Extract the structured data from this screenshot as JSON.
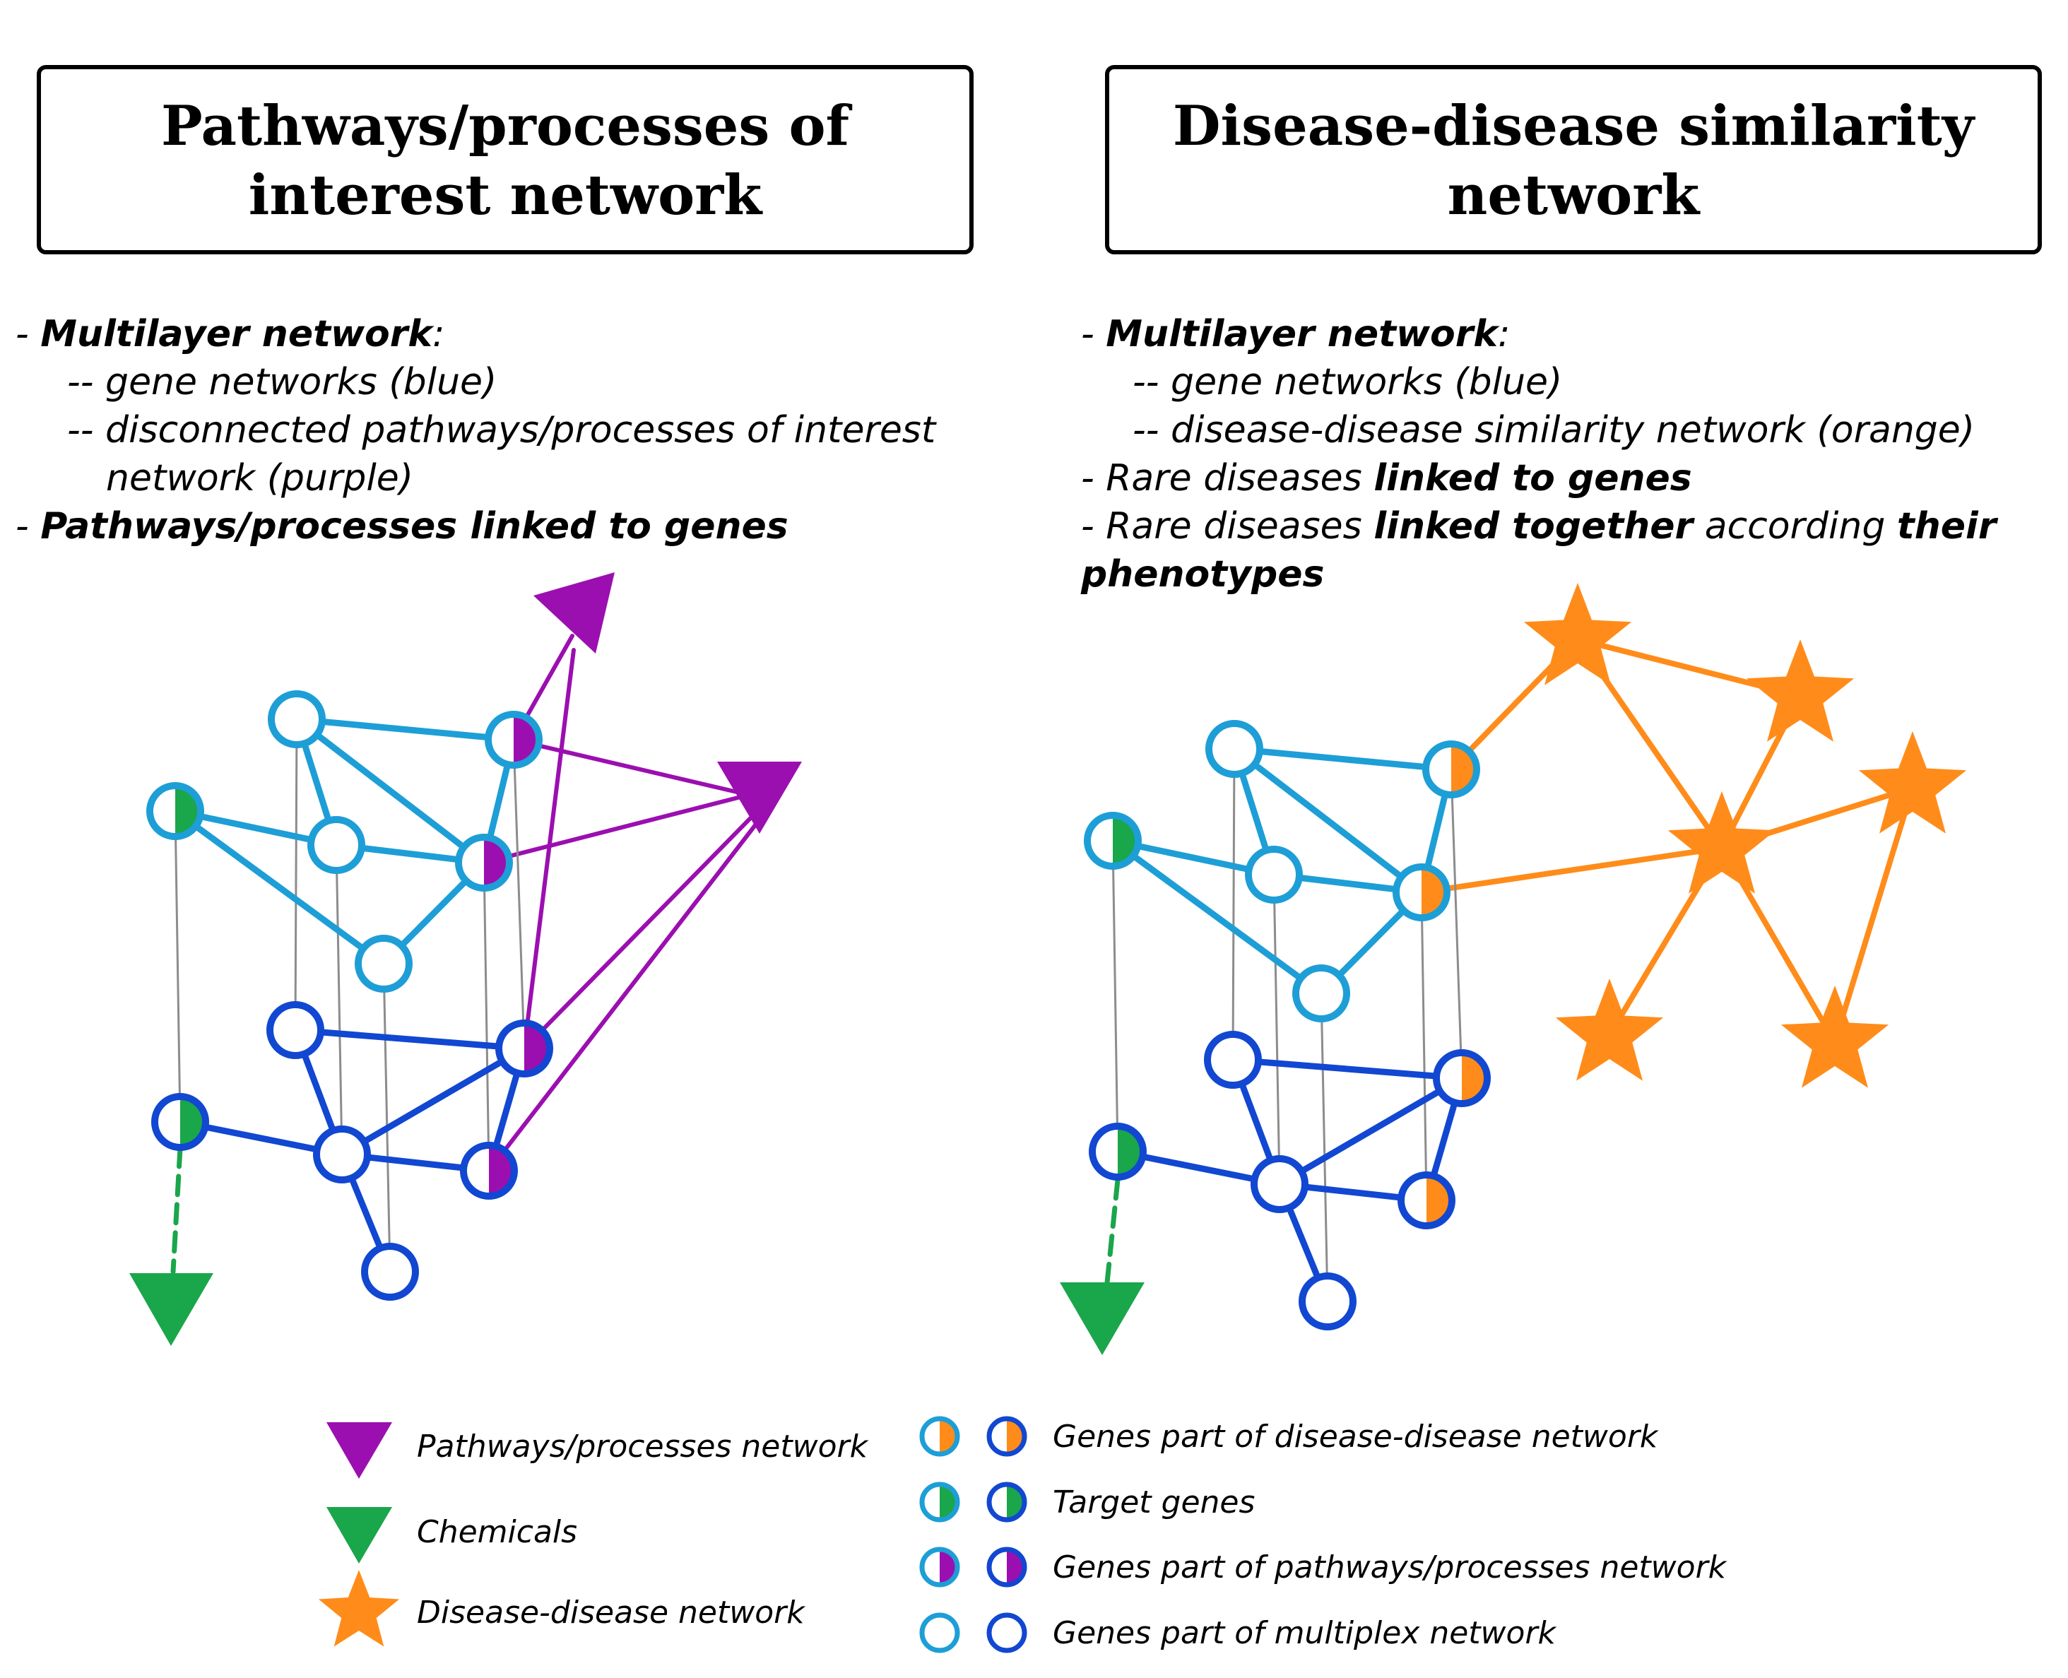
{
  "panels": {
    "left": {
      "title": [
        "Pathways/processes of",
        "interest network"
      ],
      "desc": {
        "line1_prefix": "- ",
        "line1_bold": "Multilayer network",
        "line1_suffix": ":",
        "line2": "-- gene networks (blue)",
        "line3": "-- disconnected pathways/processes of interest",
        "line4": "network (purple)",
        "line5_prefix": "- ",
        "line5_bold": "Pathways/processes linked to genes"
      }
    },
    "right": {
      "title": [
        "Disease-disease similarity",
        "network"
      ],
      "desc": {
        "line1_prefix": "- ",
        "line1_bold": "Multilayer network",
        "line1_suffix": ":",
        "line2": "-- gene networks (blue)",
        "line3": "-- disease-disease similarity network (orange)",
        "line4_prefix": "- Rare diseases ",
        "line4_bold": "linked to genes",
        "line5_prefix": "- Rare diseases ",
        "line5_bold": "linked together",
        "line5_mid": " according ",
        "line5_bold2": "their",
        "line6_bold": "phenotypes"
      }
    }
  },
  "legend": {
    "left": [
      {
        "label": "Pathways/processes network",
        "icon": "purple-triangle-icon"
      },
      {
        "label": "Chemicals",
        "icon": "green-triangle-icon"
      },
      {
        "label": "Disease-disease network",
        "icon": "orange-star-icon"
      }
    ],
    "right": [
      {
        "label": "Genes part of disease-disease network",
        "fill": "#FF8C1A"
      },
      {
        "label": "Target genes",
        "fill": "#1AA64A"
      },
      {
        "label": "Genes part of pathways/processes network",
        "fill": "#9B0FB0"
      },
      {
        "label": "Genes part of multiplex network",
        "fill": null
      }
    ]
  },
  "colors": {
    "light_blue": "#1E9ED6",
    "dark_blue": "#1147D1",
    "purple": "#9B0FB0",
    "green": "#1AA64A",
    "orange": "#FF8C1A",
    "thin_line": "#8C8C8C"
  }
}
